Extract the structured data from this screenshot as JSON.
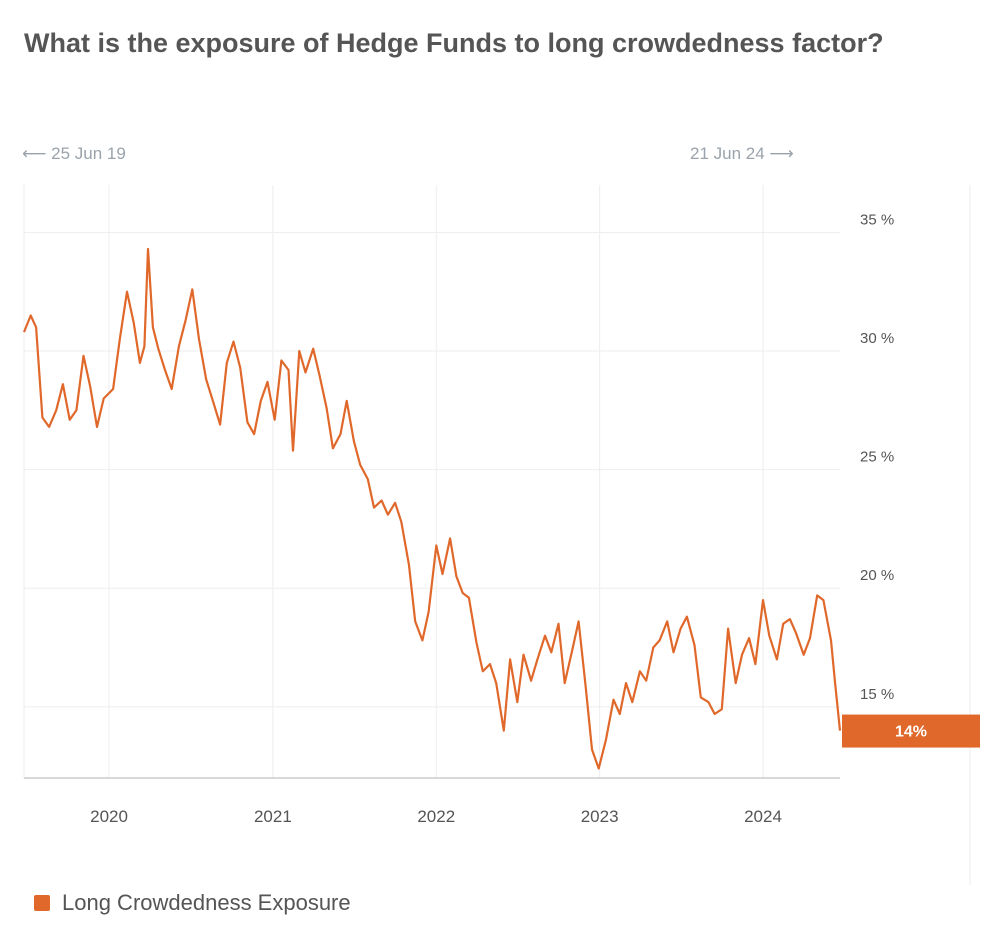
{
  "title": "What is the exposure of Hedge Funds to long crowdedness factor?",
  "range_start_label": "25 Jun 19",
  "range_end_label": "21 Jun 24",
  "legend_label": "Long Crowdedness Exposure",
  "colors": {
    "series": "#e0682a",
    "grid": "#eeeeee",
    "axis": "#cccccc",
    "text": "#555555",
    "muted": "#9aa3ab"
  },
  "chart_data": {
    "type": "line",
    "title": "What is the exposure of Hedge Funds to long crowdedness factor?",
    "xlabel": "",
    "ylabel": "",
    "x_start": "2019-06-25",
    "x_end": "2024-06-21",
    "x_ticks": [
      "2020",
      "2021",
      "2022",
      "2023",
      "2024"
    ],
    "y_ticks": [
      "15 %",
      "20 %",
      "25 %",
      "30 %",
      "35 %"
    ],
    "y_tick_values": [
      15,
      20,
      25,
      30,
      35
    ],
    "ylim": [
      12,
      37
    ],
    "last_value_label": "14%",
    "grid": true,
    "legend": "bottom-left",
    "series": [
      {
        "name": "Long Crowdedness Exposure",
        "points": [
          [
            "2019-06-25",
            30.8
          ],
          [
            "2019-07-10",
            31.5
          ],
          [
            "2019-07-22",
            31.0
          ],
          [
            "2019-08-05",
            27.2
          ],
          [
            "2019-08-20",
            26.8
          ],
          [
            "2019-09-05",
            27.5
          ],
          [
            "2019-09-20",
            28.6
          ],
          [
            "2019-10-05",
            27.1
          ],
          [
            "2019-10-20",
            27.5
          ],
          [
            "2019-11-05",
            29.8
          ],
          [
            "2019-11-20",
            28.5
          ],
          [
            "2019-12-05",
            26.8
          ],
          [
            "2019-12-20",
            28.0
          ],
          [
            "2020-01-10",
            28.4
          ],
          [
            "2020-01-25",
            30.5
          ],
          [
            "2020-02-10",
            32.5
          ],
          [
            "2020-02-25",
            31.2
          ],
          [
            "2020-03-10",
            29.5
          ],
          [
            "2020-03-20",
            30.2
          ],
          [
            "2020-03-28",
            34.3
          ],
          [
            "2020-04-08",
            31.0
          ],
          [
            "2020-04-20",
            30.1
          ],
          [
            "2020-05-05",
            29.2
          ],
          [
            "2020-05-20",
            28.4
          ],
          [
            "2020-06-05",
            30.2
          ],
          [
            "2020-06-20",
            31.3
          ],
          [
            "2020-07-05",
            32.6
          ],
          [
            "2020-07-20",
            30.5
          ],
          [
            "2020-08-05",
            28.8
          ],
          [
            "2020-08-20",
            27.9
          ],
          [
            "2020-09-05",
            26.9
          ],
          [
            "2020-09-20",
            29.5
          ],
          [
            "2020-10-05",
            30.4
          ],
          [
            "2020-10-20",
            29.3
          ],
          [
            "2020-11-05",
            27.0
          ],
          [
            "2020-11-20",
            26.5
          ],
          [
            "2020-12-05",
            27.9
          ],
          [
            "2020-12-20",
            28.7
          ],
          [
            "2021-01-05",
            27.1
          ],
          [
            "2021-01-20",
            29.6
          ],
          [
            "2021-02-05",
            29.2
          ],
          [
            "2021-02-15",
            25.8
          ],
          [
            "2021-03-01",
            30.0
          ],
          [
            "2021-03-15",
            29.1
          ],
          [
            "2021-04-01",
            30.1
          ],
          [
            "2021-04-15",
            29.0
          ],
          [
            "2021-05-01",
            27.6
          ],
          [
            "2021-05-15",
            25.9
          ],
          [
            "2021-06-01",
            26.5
          ],
          [
            "2021-06-15",
            27.9
          ],
          [
            "2021-07-01",
            26.2
          ],
          [
            "2021-07-15",
            25.2
          ],
          [
            "2021-08-01",
            24.6
          ],
          [
            "2021-08-15",
            23.4
          ],
          [
            "2021-09-01",
            23.7
          ],
          [
            "2021-09-15",
            23.1
          ],
          [
            "2021-10-01",
            23.6
          ],
          [
            "2021-10-15",
            22.8
          ],
          [
            "2021-11-01",
            21.0
          ],
          [
            "2021-11-15",
            18.6
          ],
          [
            "2021-12-01",
            17.8
          ],
          [
            "2021-12-15",
            19.0
          ],
          [
            "2022-01-01",
            21.8
          ],
          [
            "2022-01-15",
            20.6
          ],
          [
            "2022-02-01",
            22.1
          ],
          [
            "2022-02-15",
            20.5
          ],
          [
            "2022-03-01",
            19.8
          ],
          [
            "2022-03-15",
            19.6
          ],
          [
            "2022-04-01",
            17.7
          ],
          [
            "2022-04-15",
            16.5
          ],
          [
            "2022-05-01",
            16.8
          ],
          [
            "2022-05-15",
            16.0
          ],
          [
            "2022-06-01",
            14.0
          ],
          [
            "2022-06-15",
            17.0
          ],
          [
            "2022-07-01",
            15.2
          ],
          [
            "2022-07-15",
            17.2
          ],
          [
            "2022-08-01",
            16.1
          ],
          [
            "2022-08-15",
            17.0
          ],
          [
            "2022-09-01",
            18.0
          ],
          [
            "2022-09-15",
            17.3
          ],
          [
            "2022-10-01",
            18.5
          ],
          [
            "2022-10-15",
            16.0
          ],
          [
            "2022-11-01",
            17.4
          ],
          [
            "2022-11-15",
            18.6
          ],
          [
            "2022-12-01",
            15.8
          ],
          [
            "2022-12-15",
            13.2
          ],
          [
            "2022-12-30",
            12.4
          ],
          [
            "2023-01-15",
            13.6
          ],
          [
            "2023-02-01",
            15.3
          ],
          [
            "2023-02-15",
            14.7
          ],
          [
            "2023-03-01",
            16.0
          ],
          [
            "2023-03-15",
            15.2
          ],
          [
            "2023-04-01",
            16.5
          ],
          [
            "2023-04-15",
            16.1
          ],
          [
            "2023-05-01",
            17.5
          ],
          [
            "2023-05-15",
            17.8
          ],
          [
            "2023-06-01",
            18.6
          ],
          [
            "2023-06-15",
            17.3
          ],
          [
            "2023-07-01",
            18.3
          ],
          [
            "2023-07-15",
            18.8
          ],
          [
            "2023-08-01",
            17.6
          ],
          [
            "2023-08-15",
            15.4
          ],
          [
            "2023-09-01",
            15.2
          ],
          [
            "2023-09-15",
            14.7
          ],
          [
            "2023-10-01",
            14.9
          ],
          [
            "2023-10-15",
            18.3
          ],
          [
            "2023-11-01",
            16.0
          ],
          [
            "2023-11-15",
            17.2
          ],
          [
            "2023-12-01",
            17.9
          ],
          [
            "2023-12-15",
            16.8
          ],
          [
            "2024-01-01",
            19.5
          ],
          [
            "2024-01-15",
            18.0
          ],
          [
            "2024-02-01",
            17.0
          ],
          [
            "2024-02-15",
            18.5
          ],
          [
            "2024-03-01",
            18.7
          ],
          [
            "2024-03-15",
            18.1
          ],
          [
            "2024-04-01",
            17.2
          ],
          [
            "2024-04-15",
            17.9
          ],
          [
            "2024-05-01",
            19.7
          ],
          [
            "2024-05-15",
            19.5
          ],
          [
            "2024-06-01",
            17.8
          ],
          [
            "2024-06-10",
            16.0
          ],
          [
            "2024-06-21",
            14.0
          ]
        ]
      }
    ]
  }
}
